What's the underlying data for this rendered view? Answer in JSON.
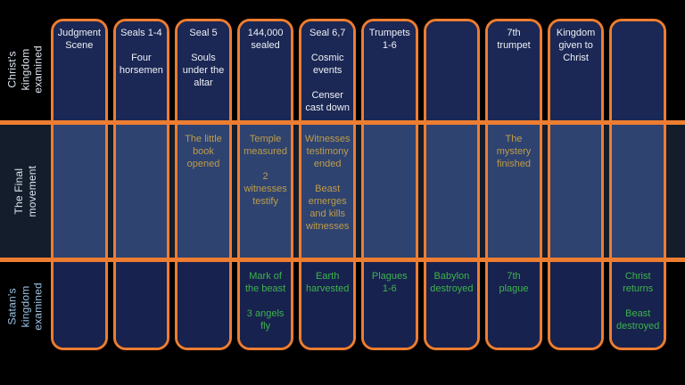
{
  "colors": {
    "accent_orange": "#ED7D31",
    "top_row_fill": "#1b2754",
    "middle_row_fill": "#2e4370",
    "bottom_row_fill": "#18224e",
    "middle_band_background": "#141d2b",
    "top_row_text": "#eef1f6",
    "middle_row_text": "#bf9c4a",
    "bottom_row_text": "#3cb44c",
    "bottom_label_text": "#9dc3e6",
    "page_background": "#000000"
  },
  "rows": [
    {
      "id": "christs-kingdom",
      "label": "Christ’s kingdom\nexamined"
    },
    {
      "id": "final-movement",
      "label": "The Final\nmovement"
    },
    {
      "id": "satans-kingdom",
      "label": "Satan’s kingdom\nexamined"
    }
  ],
  "columns": [
    {
      "top": "Judgment\nScene",
      "middle": "",
      "bottom": ""
    },
    {
      "top": "Seals 1-4\n\nFour\nhorsemen",
      "middle": "",
      "bottom": ""
    },
    {
      "top": "Seal 5\n\nSouls\nunder the\naltar",
      "middle": "The little\nbook\nopened",
      "bottom": ""
    },
    {
      "top": "144,000\nsealed",
      "middle": "Temple\nmeasured\n\n2\nwitnesses\ntestify",
      "bottom": "Mark of\nthe beast\n\n3 angels\nfly"
    },
    {
      "top": "Seal 6,7\n\nCosmic\nevents\n\nCenser\ncast down",
      "middle": "Witnesses\ntestimony\nended\n\nBeast\nemerges\nand kills\nwitnesses",
      "bottom": "Earth\nharvested"
    },
    {
      "top": "Trumpets\n1-6",
      "middle": "",
      "bottom": "Plagues\n1-6"
    },
    {
      "top": "",
      "middle": "",
      "bottom": "Babylon\ndestroyed"
    },
    {
      "top": "7th\ntrumpet",
      "middle": "The\nmystery\nfinished",
      "bottom": "7th\nplague"
    },
    {
      "top": "Kingdom\ngiven to\nChrist",
      "middle": "",
      "bottom": ""
    },
    {
      "top": "",
      "middle": "",
      "bottom": "Christ\nreturns\n\nBeast\ndestroyed"
    }
  ]
}
